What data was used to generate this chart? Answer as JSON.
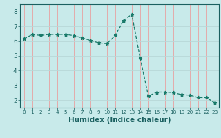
{
  "x": [
    0,
    1,
    2,
    3,
    4,
    5,
    6,
    7,
    8,
    9,
    10,
    11,
    12,
    13,
    14,
    15,
    16,
    17,
    18,
    19,
    20,
    21,
    22,
    23
  ],
  "y": [
    6.15,
    6.45,
    6.38,
    6.45,
    6.45,
    6.45,
    6.37,
    6.22,
    6.05,
    5.88,
    5.82,
    6.38,
    7.38,
    7.82,
    4.88,
    2.28,
    2.55,
    2.55,
    2.52,
    2.38,
    2.35,
    2.18,
    2.18,
    1.82
  ],
  "line_color": "#1a7a6a",
  "bg_color": "#c8eaea",
  "grid_color_v": "#e8a0a0",
  "grid_color_h": "#b8d8d8",
  "xlabel": "Humidex (Indice chaleur)",
  "ylim": [
    1.5,
    8.5
  ],
  "xlim": [
    -0.5,
    23.5
  ],
  "yticks": [
    2,
    3,
    4,
    5,
    6,
    7,
    8
  ],
  "xticks": [
    0,
    1,
    2,
    3,
    4,
    5,
    6,
    7,
    8,
    9,
    10,
    11,
    12,
    13,
    14,
    15,
    16,
    17,
    18,
    19,
    20,
    21,
    22,
    23
  ],
  "tick_color": "#1a6060",
  "label_fontsize": 6,
  "xlabel_fontsize": 7.5
}
